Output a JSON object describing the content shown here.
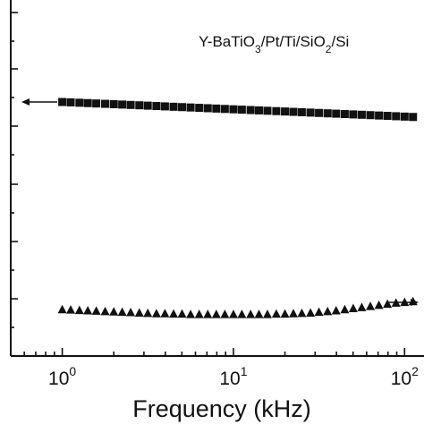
{
  "chart_data": {
    "type": "scatter",
    "title": "",
    "xlabel": "Frequency (kHz)",
    "ylabel": "",
    "xscale": "log",
    "xlim": [
      0.5,
      150
    ],
    "x_ticks": [
      {
        "base": "10",
        "exp": "0",
        "value": 1
      },
      {
        "base": "10",
        "exp": "1",
        "value": 10
      },
      {
        "base": "10",
        "exp": "2",
        "value": 100
      }
    ],
    "annotation": {
      "parts": [
        "Y-BaTiO",
        "3",
        "/Pt/Ti/SiO",
        "2",
        "/Si"
      ]
    },
    "legend": "none",
    "grid": false,
    "series": [
      {
        "marker": "square",
        "axis": "left",
        "color": "#111111",
        "x": [
          1.0,
          1.12,
          1.26,
          1.41,
          1.58,
          1.78,
          2.0,
          2.24,
          2.51,
          2.82,
          3.16,
          3.55,
          3.98,
          4.47,
          5.01,
          5.62,
          6.31,
          7.08,
          7.94,
          8.91,
          10.0,
          11.2,
          12.6,
          14.1,
          15.8,
          17.8,
          20.0,
          22.4,
          25.1,
          28.2,
          31.6,
          35.5,
          39.8,
          44.7,
          50.1,
          56.2,
          63.1,
          70.8,
          79.4,
          89.1,
          100.0,
          112.0
        ],
        "values": [
          0.696,
          0.695,
          0.694,
          0.693,
          0.692,
          0.691,
          0.69,
          0.689,
          0.688,
          0.687,
          0.686,
          0.685,
          0.684,
          0.683,
          0.682,
          0.681,
          0.68,
          0.679,
          0.678,
          0.677,
          0.676,
          0.675,
          0.674,
          0.673,
          0.672,
          0.671,
          0.67,
          0.669,
          0.668,
          0.667,
          0.666,
          0.665,
          0.664,
          0.663,
          0.662,
          0.661,
          0.66,
          0.659,
          0.658,
          0.657,
          0.656,
          0.655
        ]
      },
      {
        "marker": "triangle-up",
        "axis": "right",
        "color": "#111111",
        "x": [
          1.0,
          1.12,
          1.26,
          1.41,
          1.58,
          1.78,
          2.0,
          2.24,
          2.51,
          2.82,
          3.16,
          3.55,
          3.98,
          4.47,
          5.01,
          5.62,
          6.31,
          7.08,
          7.94,
          8.91,
          10.0,
          11.2,
          12.6,
          14.1,
          15.8,
          17.8,
          20.0,
          22.4,
          25.1,
          28.2,
          31.6,
          35.5,
          39.8,
          44.7,
          50.1,
          56.2,
          63.1,
          70.8,
          79.4,
          89.1,
          100.0,
          112.0
        ],
        "values": [
          0.128,
          0.127,
          0.126,
          0.125,
          0.124,
          0.123,
          0.122,
          0.121,
          0.12,
          0.119,
          0.118,
          0.117,
          0.117,
          0.116,
          0.116,
          0.115,
          0.115,
          0.115,
          0.115,
          0.115,
          0.115,
          0.115,
          0.115,
          0.115,
          0.115,
          0.116,
          0.116,
          0.117,
          0.118,
          0.119,
          0.121,
          0.123,
          0.125,
          0.128,
          0.131,
          0.134,
          0.137,
          0.14,
          0.143,
          0.146,
          0.148,
          0.15
        ]
      }
    ],
    "series_note_ignore": "",
    "axis_arrows": [
      {
        "points_to": "left"
      },
      {
        "points_to": "right"
      }
    ]
  }
}
